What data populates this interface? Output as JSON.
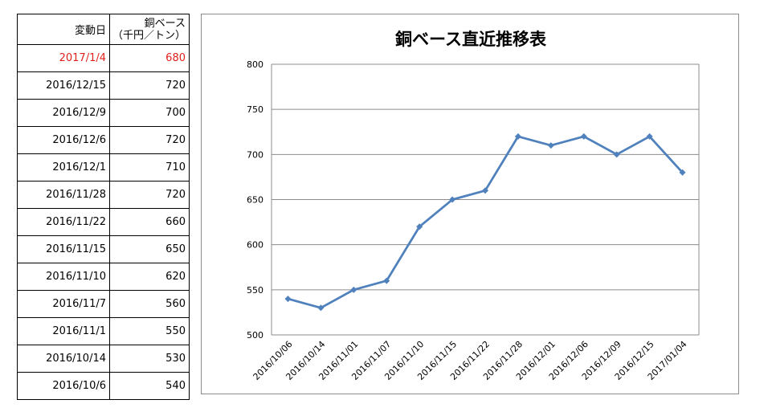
{
  "table": {
    "header_date": "変動日",
    "header_value_line1": "銅ベース",
    "header_value_line2": "（千円／トン）",
    "rows": [
      {
        "date": "2017/1/4",
        "value": "680"
      },
      {
        "date": "2016/12/15",
        "value": "720"
      },
      {
        "date": "2016/12/9",
        "value": "700"
      },
      {
        "date": "2016/12/6",
        "value": "720"
      },
      {
        "date": "2016/12/1",
        "value": "710"
      },
      {
        "date": "2016/11/28",
        "value": "720"
      },
      {
        "date": "2016/11/22",
        "value": "660"
      },
      {
        "date": "2016/11/15",
        "value": "650"
      },
      {
        "date": "2016/11/10",
        "value": "620"
      },
      {
        "date": "2016/11/7",
        "value": "560"
      },
      {
        "date": "2016/11/1",
        "value": "550"
      },
      {
        "date": "2016/10/14",
        "value": "530"
      },
      {
        "date": "2016/10/6",
        "value": "540"
      }
    ],
    "latest_color": "#e0201c"
  },
  "chart_data": {
    "type": "line",
    "title": "銅ベース直近推移表",
    "categories": [
      "2016/10/06",
      "2016/10/14",
      "2016/11/01",
      "2016/11/07",
      "2016/11/10",
      "2016/11/15",
      "2016/11/22",
      "2016/11/28",
      "2016/12/01",
      "2016/12/06",
      "2016/12/09",
      "2016/12/15",
      "2017/01/04"
    ],
    "series": [
      {
        "values": [
          540,
          530,
          550,
          560,
          620,
          650,
          660,
          720,
          710,
          720,
          700,
          720,
          680
        ],
        "color": "#4f81bd"
      }
    ],
    "ylim": [
      500,
      800
    ],
    "yticks": [
      "500",
      "550",
      "600",
      "650",
      "700",
      "750",
      "800"
    ],
    "grid": true,
    "legend": "none"
  }
}
